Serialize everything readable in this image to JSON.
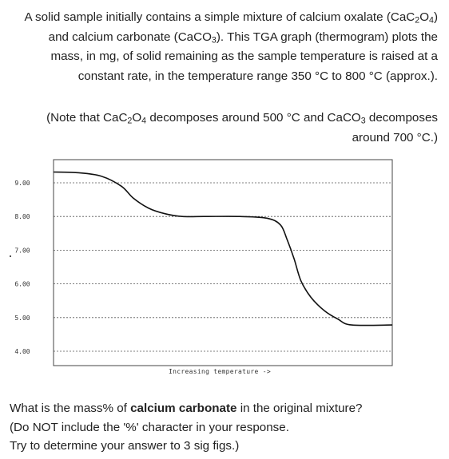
{
  "intro": {
    "l1a": "A solid sample initially contains a simple mixture of calcium oxalate (CaC",
    "l1b": "2",
    "l1c": "O",
    "l1d": "4",
    "l1e": ")",
    "l2a": "and calcium carbonate (CaCO",
    "l2b": "3",
    "l2c": ").  This TGA graph (thermogram) plots the",
    "l3": "mass, in mg, of solid remaining as the sample temperature is raised at a",
    "l4": "constant rate, in the temperature range 350 °C to 800 °C (approx.)."
  },
  "note": {
    "l1a": "(Note that CaC",
    "l1b": "2",
    "l1c": "O",
    "l1d": "4",
    "l1e": " decomposes around 500 °C and CaCO",
    "l1f": "3",
    "l1g": " decomposes",
    "l2": "around 700 °C.)"
  },
  "graph": {
    "y_ticks": [
      "9.00",
      "8.00",
      "7.00",
      "6.00",
      "5.00",
      "4.00"
    ],
    "x_caption": "Increasing temperature ->"
  },
  "chart_data": {
    "type": "line",
    "title": "",
    "xlabel": "Increasing temperature ->",
    "ylabel": "",
    "ylim": [
      4.0,
      9.0
    ],
    "y_ticks": [
      9.0,
      8.0,
      7.0,
      6.0,
      5.0,
      4.0
    ],
    "x_tick_labels": [],
    "grid": true,
    "series": [
      {
        "name": "",
        "x_relative_temperature": [
          0.0,
          0.07,
          0.14,
          0.2,
          0.235,
          0.28,
          0.33,
          0.38,
          0.45,
          0.55,
          0.63,
          0.67,
          0.69,
          0.71,
          0.73,
          0.76,
          0.8,
          0.84,
          0.88,
          1.0
        ],
        "y_mass_mg": [
          9.32,
          9.3,
          9.2,
          8.9,
          8.55,
          8.25,
          8.08,
          8.0,
          8.0,
          8.0,
          7.95,
          7.75,
          7.3,
          6.75,
          6.1,
          5.6,
          5.2,
          4.95,
          4.78,
          4.78
        ]
      }
    ]
  },
  "question": {
    "l1a": "What is the mass% of ",
    "l1b": "calcium carbonate",
    "l1c": " in the original mixture?",
    "l2": "(Do NOT include the '%' character in your response.",
    "l3": "Try to determine your answer to 3 sig figs.)"
  }
}
